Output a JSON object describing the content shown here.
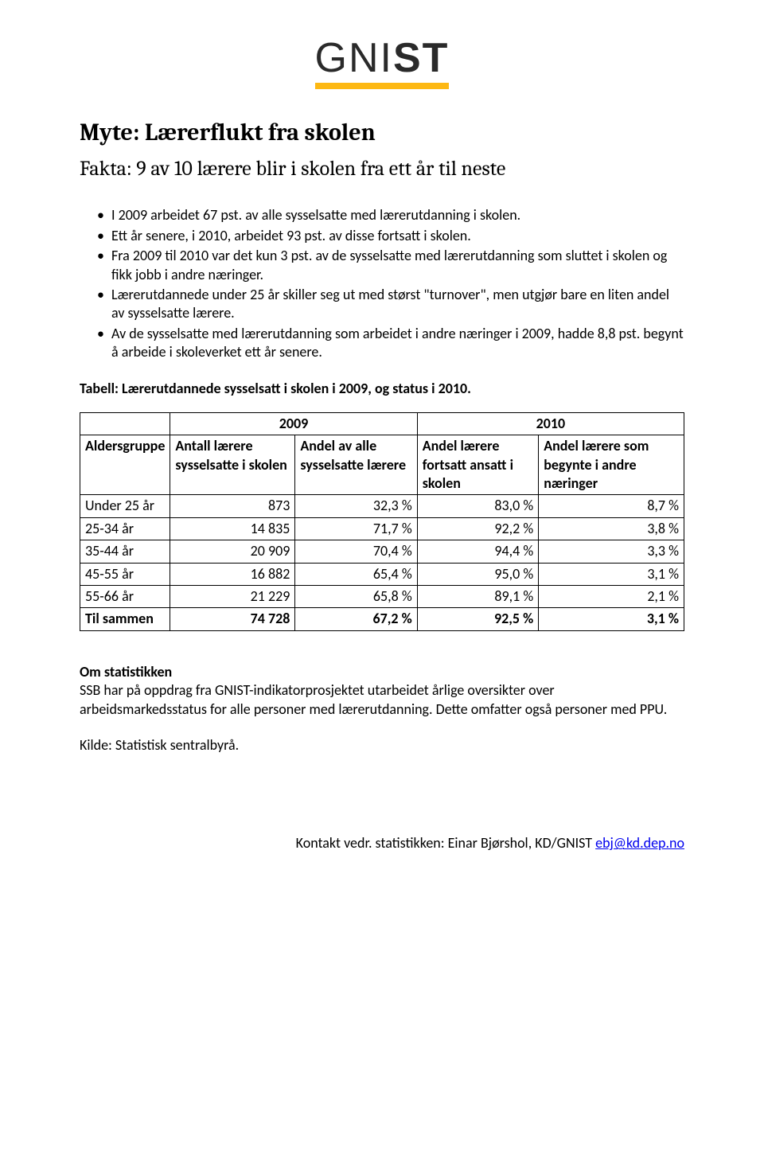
{
  "logo": {
    "thin": "GNI",
    "bold": "ST"
  },
  "heading": "Myte: Lærerflukt fra skolen",
  "subheading": "Fakta: 9 av 10 lærere blir i skolen fra ett år til neste",
  "bullets": [
    "I 2009 arbeidet 67 pst. av alle sysselsatte med lærerutdanning i skolen.",
    "Ett år senere, i 2010, arbeidet 93 pst. av disse fortsatt i skolen.",
    "Fra 2009 til 2010 var det kun 3 pst. av de sysselsatte med lærerutdanning som sluttet i skolen og fikk jobb i andre næringer.",
    "Lærerutdannede under 25 år skiller seg ut med størst \"turnover\", men utgjør bare en liten andel av sysselsatte lærere.",
    "Av de sysselsatte med lærerutdanning som arbeidet i andre næringer i 2009, hadde 8,8 pst. begynt å arbeide i skoleverket ett år senere."
  ],
  "table_caption": "Tabell: Lærerutdannede sysselsatt i skolen i 2009, og status i 2010.",
  "table": {
    "year_left": "2009",
    "year_right": "2010",
    "col_group": "Aldersgruppe",
    "col_a": "Antall lærere sysselsatte i skolen",
    "col_b": "Andel av alle sysselsatte lærere",
    "col_c": "Andel lærere fortsatt ansatt i skolen",
    "col_d": "Andel lærere som begynte i andre næringer",
    "rows": [
      {
        "g": "Under 25 år",
        "a": "873",
        "b": "32,3 %",
        "c": "83,0 %",
        "d": "8,7 %"
      },
      {
        "g": "25-34 år",
        "a": "14 835",
        "b": "71,7 %",
        "c": "92,2 %",
        "d": "3,8 %"
      },
      {
        "g": "35-44 år",
        "a": "20 909",
        "b": "70,4 %",
        "c": "94,4 %",
        "d": "3,3 %"
      },
      {
        "g": "45-55 år",
        "a": "16 882",
        "b": "65,4 %",
        "c": "95,0 %",
        "d": "3,1 %"
      },
      {
        "g": "55-66 år",
        "a": "21 229",
        "b": "65,8 %",
        "c": "89,1 %",
        "d": "2,1 %"
      }
    ],
    "total": {
      "g": "Til sammen",
      "a": "74 728",
      "b": "67,2 %",
      "c": "92,5 %",
      "d": "3,1 %"
    }
  },
  "about": {
    "title": "Om statistikken",
    "body": "SSB har på oppdrag fra GNIST-indikatorprosjektet utarbeidet årlige oversikter over arbeidsmarkedsstatus for alle personer med lærerutdanning. Dette omfatter også personer med PPU."
  },
  "source": "Kilde: Statistisk sentralbyrå.",
  "footer": {
    "prefix": "Kontakt vedr. statistikken: Einar Bjørshol, KD/GNIST ",
    "email": "ebj@kd.dep.no"
  }
}
